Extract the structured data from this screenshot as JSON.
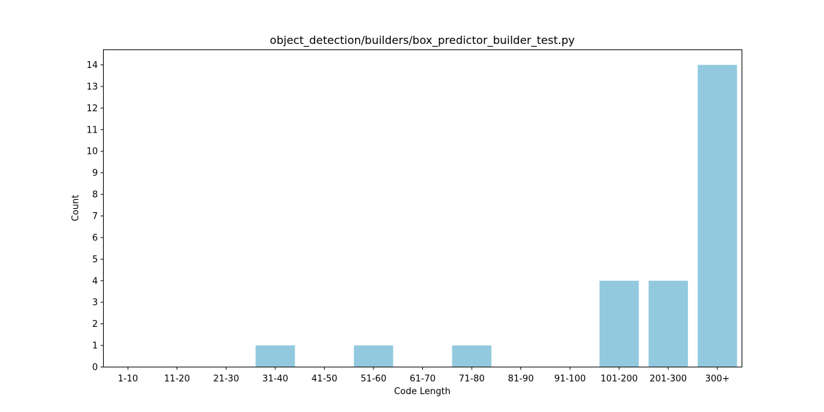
{
  "chart_data": {
    "type": "bar",
    "title": "object_detection/builders/box_predictor_builder_test.py",
    "xlabel": "Code Length",
    "ylabel": "Count",
    "categories": [
      "1-10",
      "11-20",
      "21-30",
      "31-40",
      "41-50",
      "51-60",
      "61-70",
      "71-80",
      "81-90",
      "91-100",
      "101-200",
      "201-300",
      "300+"
    ],
    "values": [
      0,
      0,
      0,
      1,
      0,
      1,
      0,
      1,
      0,
      0,
      4,
      4,
      14
    ],
    "yticks": [
      0,
      1,
      2,
      3,
      4,
      5,
      6,
      7,
      8,
      9,
      10,
      11,
      12,
      13,
      14
    ],
    "ylim": [
      0,
      14.7
    ],
    "grid": false,
    "bar_color": "#92c9df"
  }
}
